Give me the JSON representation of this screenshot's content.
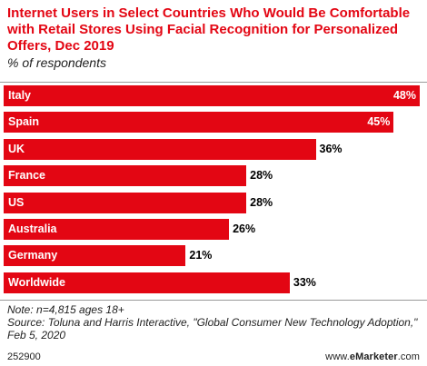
{
  "title": "Internet Users in Select Countries Who Would Be Comfortable with Retail Stores Using Facial Recognition for Personalized Offers, Dec 2019",
  "subtitle": "% of respondents",
  "colors": {
    "accent": "#e30613",
    "label_inside": "#ffffff",
    "label_outside": "#000000"
  },
  "chart_data": {
    "type": "bar",
    "orientation": "horizontal",
    "categories": [
      "Italy",
      "Spain",
      "UK",
      "France",
      "US",
      "Australia",
      "Germany",
      "Worldwide"
    ],
    "values": [
      48,
      45,
      36,
      28,
      28,
      26,
      21,
      33
    ],
    "value_labels": [
      "48%",
      "45%",
      "36%",
      "28%",
      "28%",
      "26%",
      "21%",
      "33%"
    ],
    "title": "Internet Users in Select Countries Who Would Be Comfortable with Retail Stores Using Facial Recognition for Personalized Offers, Dec 2019",
    "subtitle": "% of respondents",
    "xlabel": "",
    "ylabel": "",
    "xlim": [
      0,
      48
    ],
    "grid": false,
    "legend": "none"
  },
  "notes": {
    "note": "Note: n=4,815 ages 18+",
    "source": "Source: Toluna and Harris Interactive, \"Global Consumer New Technology Adoption,\" Feb 5, 2020"
  },
  "footer": {
    "chart_id": "252900",
    "brand_site": "www.",
    "brand_name": "eMarketer",
    "brand_tld": ".com"
  }
}
